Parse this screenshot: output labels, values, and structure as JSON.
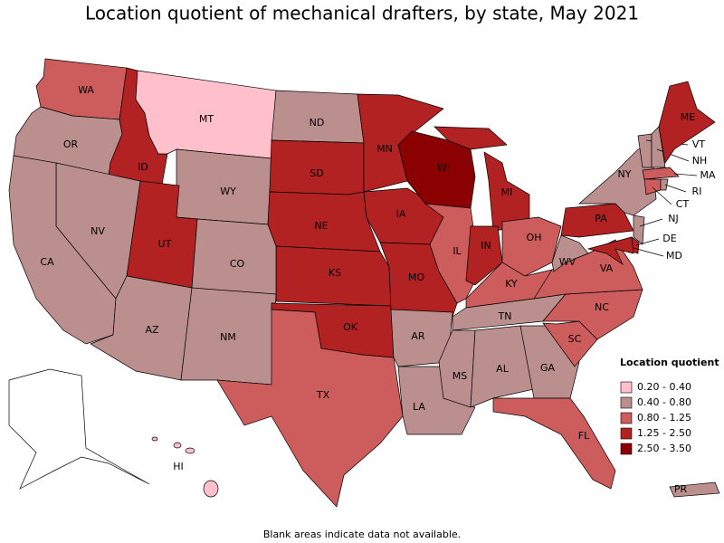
{
  "title": "Location quotient of mechanical drafters, by state, May 2021",
  "legend": {
    "title": "Location quotient",
    "items": [
      {
        "label": "0.20 - 0.40",
        "color": "#ffc0cb"
      },
      {
        "label": "0.40 - 0.80",
        "color": "#bc8f8f"
      },
      {
        "label": "0.80 - 1.25",
        "color": "#cd5c5c"
      },
      {
        "label": "1.25 - 2.50",
        "color": "#b22222"
      },
      {
        "label": "2.50 - 3.50",
        "color": "#8b0000"
      }
    ]
  },
  "states": [
    {
      "label": "WA",
      "color": "#cd5c5c"
    },
    {
      "label": "OR",
      "color": "#bc8f8f"
    },
    {
      "label": "ID",
      "color": "#b22222"
    },
    {
      "label": "MT",
      "color": "#ffc0cb"
    },
    {
      "label": "WY",
      "color": "#bc8f8f"
    },
    {
      "label": "ND",
      "color": "#bc8f8f"
    },
    {
      "label": "SD",
      "color": "#b22222"
    },
    {
      "label": "NE",
      "color": "#b22222"
    },
    {
      "label": "KS",
      "color": "#b22222"
    },
    {
      "label": "UT",
      "color": "#b22222"
    },
    {
      "label": "CO",
      "color": "#bc8f8f"
    },
    {
      "label": "NV",
      "color": "#bc8f8f"
    },
    {
      "label": "CA",
      "color": "#bc8f8f"
    },
    {
      "label": "AZ",
      "color": "#bc8f8f"
    },
    {
      "label": "NM",
      "color": "#bc8f8f"
    },
    {
      "label": "OK",
      "color": "#b22222"
    },
    {
      "label": "TX",
      "color": "#cd5c5c"
    },
    {
      "label": "MN",
      "color": "#b22222"
    },
    {
      "label": "IA",
      "color": "#b22222"
    },
    {
      "label": "MO",
      "color": "#b22222"
    },
    {
      "label": "AR",
      "color": "#bc8f8f"
    },
    {
      "label": "LA",
      "color": "#bc8f8f"
    },
    {
      "label": "WI",
      "color": "#8b0000"
    },
    {
      "label": "IL",
      "color": "#cd5c5c"
    },
    {
      "label": "MI",
      "color": "#b22222"
    },
    {
      "label": "IN",
      "color": "#b22222"
    },
    {
      "label": "OH",
      "color": "#cd5c5c"
    },
    {
      "label": "KY",
      "color": "#cd5c5c"
    },
    {
      "label": "TN",
      "color": "#bc8f8f"
    },
    {
      "label": "MS",
      "color": "#bc8f8f"
    },
    {
      "label": "AL",
      "color": "#bc8f8f"
    },
    {
      "label": "GA",
      "color": "#bc8f8f"
    },
    {
      "label": "FL",
      "color": "#cd5c5c"
    },
    {
      "label": "SC",
      "color": "#cd5c5c"
    },
    {
      "label": "NC",
      "color": "#cd5c5c"
    },
    {
      "label": "VA",
      "color": "#cd5c5c"
    },
    {
      "label": "WV",
      "color": "#bc8f8f"
    },
    {
      "label": "PA",
      "color": "#b22222"
    },
    {
      "label": "NY",
      "color": "#bc8f8f"
    },
    {
      "label": "VT",
      "color": "#bc8f8f"
    },
    {
      "label": "NH",
      "color": "#bc8f8f"
    },
    {
      "label": "ME",
      "color": "#b22222"
    },
    {
      "label": "MA",
      "color": "#cd5c5c"
    },
    {
      "label": "CT",
      "color": "#cd5c5c"
    },
    {
      "label": "RI",
      "color": "#bc8f8f"
    },
    {
      "label": "NJ",
      "color": "#bc8f8f"
    },
    {
      "label": "DE",
      "color": "#b22222"
    },
    {
      "label": "MD",
      "color": "#b22222"
    },
    {
      "label": "HI",
      "color": "#ffc0cb"
    },
    {
      "label": "PR",
      "color": "#bc8f8f"
    }
  ],
  "note": "Blank areas indicate data not available."
}
